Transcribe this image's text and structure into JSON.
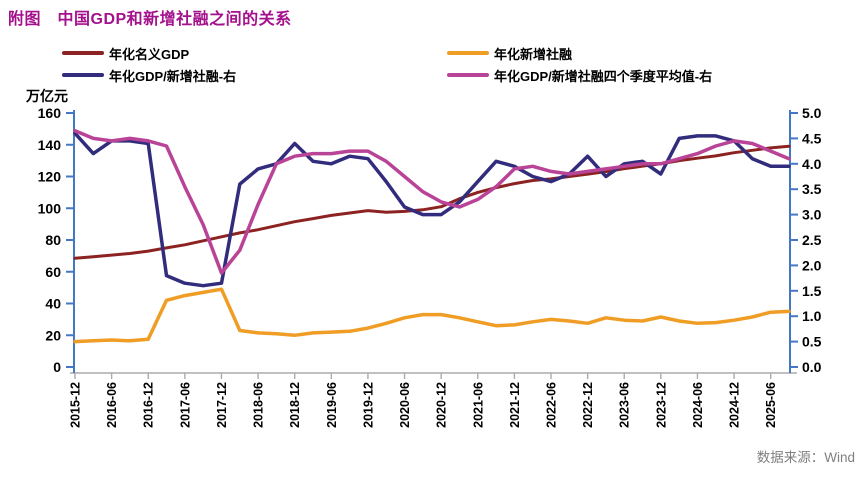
{
  "page": {
    "title": "附图　中国GDP和新增社融之间的关系",
    "unit_label": "万亿元",
    "source": "数据来源：Wind"
  },
  "colors": {
    "title": "#A4118C",
    "gdp_line": "#8C2322",
    "tsf_line": "#F09D26",
    "ratio_line": "#322C7C",
    "ratio_avg_line": "#B94397",
    "y_axis": "#4477C4",
    "x_axis": "#ABABAB",
    "tick_label": "#000000",
    "source_text": "#7F7F7F"
  },
  "chart_data": {
    "type": "line",
    "title": "附图　中国GDP和新增社融之间的关系",
    "x": [
      "2015-12",
      "2016-03",
      "2016-06",
      "2016-09",
      "2016-12",
      "2017-03",
      "2017-06",
      "2017-09",
      "2017-12",
      "2018-03",
      "2018-06",
      "2018-09",
      "2018-12",
      "2019-03",
      "2019-06",
      "2019-09",
      "2019-12",
      "2020-03",
      "2020-06",
      "2020-09",
      "2020-12",
      "2021-03",
      "2021-06",
      "2021-09",
      "2021-12",
      "2022-03",
      "2022-06",
      "2022-09",
      "2022-12",
      "2023-03",
      "2023-06",
      "2023-09",
      "2023-12",
      "2024-03",
      "2024-06",
      "2024-09",
      "2024-12",
      "2025-03",
      "2025-06",
      "2025-09"
    ],
    "x_tick_every": 2,
    "left_axis": {
      "label": "万亿元",
      "min": 0,
      "max": 160,
      "step": 20
    },
    "right_axis": {
      "min": 0.0,
      "max": 5.0,
      "step": 0.5
    },
    "grid": false,
    "legend_position": "top",
    "series": [
      {
        "name": "年化名义GDP",
        "axis": "left",
        "color_key": "gdp_line",
        "values": [
          68.5,
          69.5,
          70.5,
          71.5,
          73,
          75,
          77,
          79.5,
          82,
          84.5,
          86.5,
          89,
          91.5,
          93.5,
          95.5,
          97,
          98.5,
          97.5,
          98,
          99,
          101,
          106,
          110,
          113,
          115.5,
          117.5,
          118.5,
          120,
          121.5,
          123,
          125,
          126.5,
          128,
          130,
          131.5,
          133,
          135,
          136.5,
          138,
          139
        ]
      },
      {
        "name": "年化新增社融",
        "axis": "left",
        "color_key": "tsf_line",
        "values": [
          16,
          16.5,
          17,
          16.5,
          17.5,
          42,
          45,
          47,
          49,
          23,
          21.5,
          21,
          20,
          21.5,
          22,
          22.5,
          24.5,
          27.5,
          31,
          33,
          33,
          31,
          28.5,
          26,
          26.5,
          28.5,
          30,
          29,
          27.5,
          31,
          29.5,
          29,
          31.5,
          29,
          27.5,
          28,
          29.5,
          31.5,
          34.5,
          35
        ]
      },
      {
        "name": "年化GDP/新增社融-右",
        "axis": "right",
        "color_key": "ratio_line",
        "values": [
          4.6,
          4.2,
          4.45,
          4.45,
          4.4,
          1.8,
          1.65,
          1.6,
          1.65,
          3.6,
          3.9,
          4.0,
          4.4,
          4.05,
          4.0,
          4.15,
          4.1,
          3.65,
          3.15,
          3.0,
          3.0,
          3.25,
          3.65,
          4.05,
          3.95,
          3.75,
          3.65,
          3.8,
          4.15,
          3.75,
          4.0,
          4.05,
          3.8,
          4.5,
          4.55,
          4.55,
          4.45,
          4.1,
          3.95,
          3.95
        ]
      },
      {
        "name": "年化GDP/新增社融四个季度平均值-右",
        "axis": "right",
        "color_key": "ratio_avg_line",
        "values": [
          4.65,
          4.5,
          4.45,
          4.5,
          4.45,
          4.35,
          3.55,
          2.8,
          1.85,
          2.3,
          3.2,
          4.0,
          4.15,
          4.2,
          4.2,
          4.25,
          4.25,
          4.05,
          3.75,
          3.45,
          3.25,
          3.15,
          3.3,
          3.55,
          3.9,
          3.95,
          3.85,
          3.8,
          3.85,
          3.9,
          3.95,
          4.0,
          4.0,
          4.1,
          4.2,
          4.35,
          4.45,
          4.4,
          4.25,
          4.1
        ]
      }
    ]
  }
}
